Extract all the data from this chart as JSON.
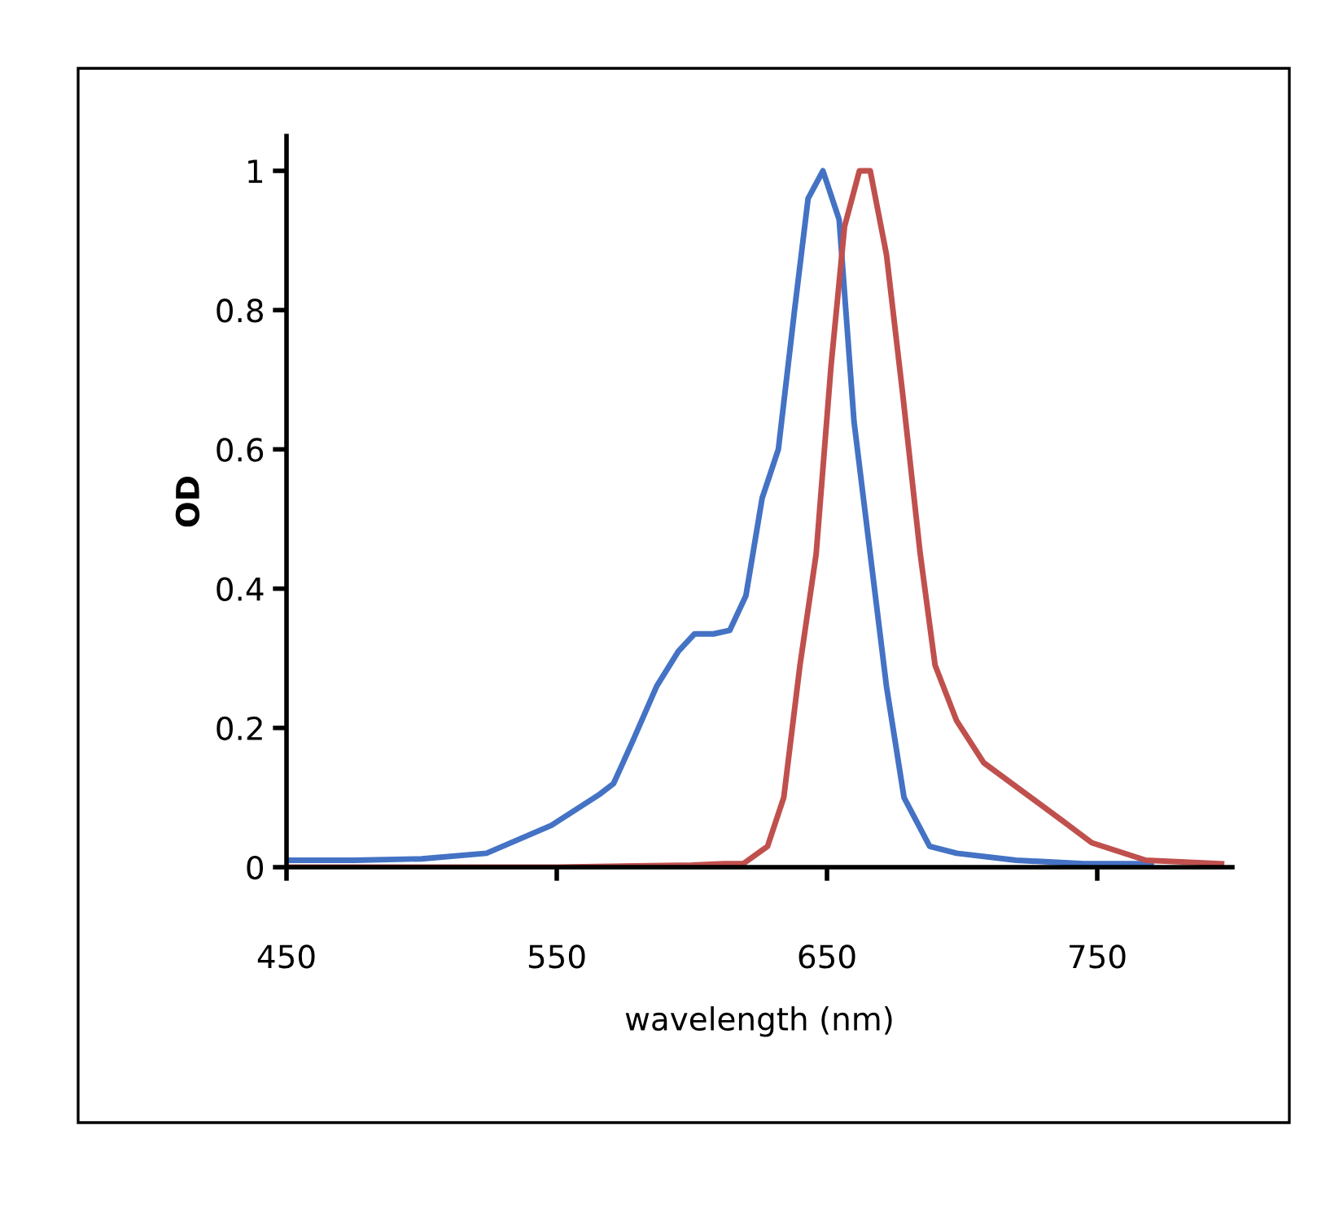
{
  "chart_data": {
    "type": "line",
    "xlabel": "wavelength (nm)",
    "ylabel": "OD",
    "xlim": [
      450,
      800
    ],
    "xticks": [
      450,
      550,
      650,
      750
    ],
    "ylim": [
      0,
      1.05
    ],
    "yticks": [
      0,
      0.2,
      0.4,
      0.6,
      0.8,
      1
    ],
    "grid": false,
    "legend": false,
    "marker": "none",
    "line_style": "solid",
    "series": [
      {
        "color": "#4472c4",
        "x": [
          450,
          475,
          500,
          524,
          548,
          566,
          571,
          578,
          587,
          595,
          601,
          608,
          614,
          620,
          626,
          632,
          638,
          643,
          648.5,
          654.5,
          660,
          666,
          672,
          678.5,
          688,
          698,
          720,
          745,
          770
        ],
        "values": [
          0.01,
          0.01,
          0.012,
          0.02,
          0.06,
          0.105,
          0.12,
          0.18,
          0.26,
          0.31,
          0.335,
          0.335,
          0.34,
          0.39,
          0.53,
          0.6,
          0.8,
          0.96,
          1.0,
          0.93,
          0.64,
          0.45,
          0.26,
          0.1,
          0.03,
          0.02,
          0.01,
          0.005,
          0.005
        ]
      },
      {
        "color": "#c0504d",
        "x": [
          450,
          500,
          550,
          600,
          612,
          619,
          628,
          634,
          640,
          646,
          651.5,
          656.5,
          662,
          666,
          672,
          678,
          684.5,
          690,
          698,
          708,
          722,
          736,
          748,
          768,
          796
        ],
        "values": [
          0,
          0,
          0,
          0.003,
          0.005,
          0.005,
          0.03,
          0.1,
          0.29,
          0.45,
          0.72,
          0.92,
          1.0,
          1.0,
          0.88,
          0.68,
          0.45,
          0.29,
          0.21,
          0.15,
          0.11,
          0.07,
          0.035,
          0.01,
          0.005
        ]
      }
    ]
  }
}
